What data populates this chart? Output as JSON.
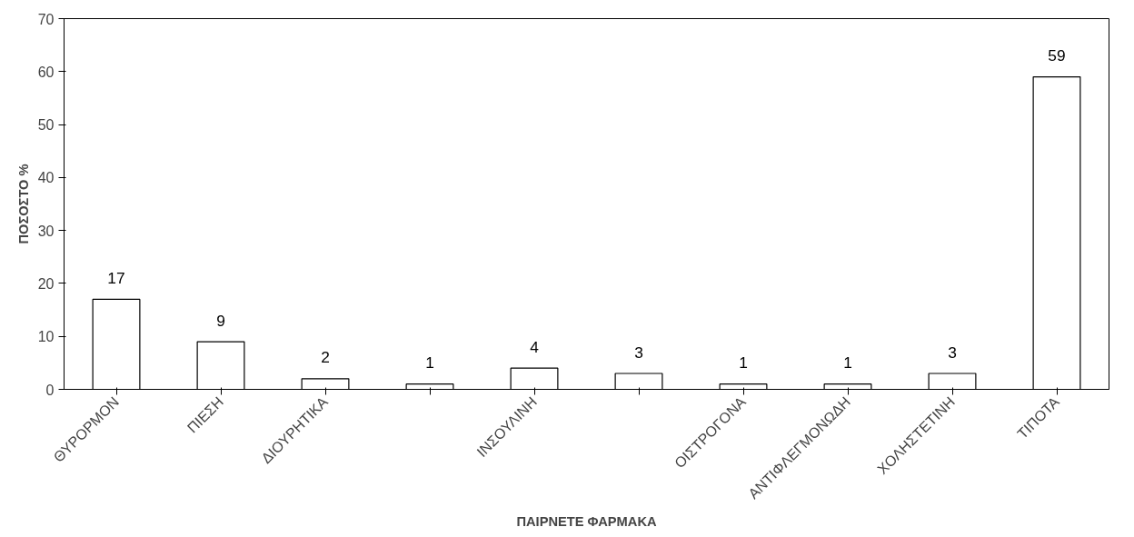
{
  "chart_data": {
    "type": "bar",
    "xlabel": "ΠΑΙΡΝΕΤΕ ΦΑΡΜΑΚΑ",
    "ylabel": "ΠΟΣΟΣΤΟ %",
    "categories": [
      "ΘΥΡΟΡΜΟΝ",
      "ΠΙΕΣΗ",
      "ΔΙΟΥΡΗΤΙΚΑ",
      null,
      "ΙΝΣΟΥΛΙΝΗ",
      null,
      "ΟΙΣΤΡΟΓΟΝΑ",
      "ΑΝΤΙΦΛΕΓΜΟΝΩΔΗ",
      "ΧΟΛΗΣΤΕΤΙΝΗ",
      "ΤΙΠΟΤΑ"
    ],
    "values": [
      17,
      9,
      2,
      1,
      4,
      3,
      1,
      1,
      3,
      59
    ],
    "color": "#ffffff",
    "ylim": [
      0,
      70
    ],
    "yticks": [
      0,
      10,
      20,
      30,
      40,
      50,
      60,
      70
    ],
    "data_labels": true,
    "grid": false
  }
}
